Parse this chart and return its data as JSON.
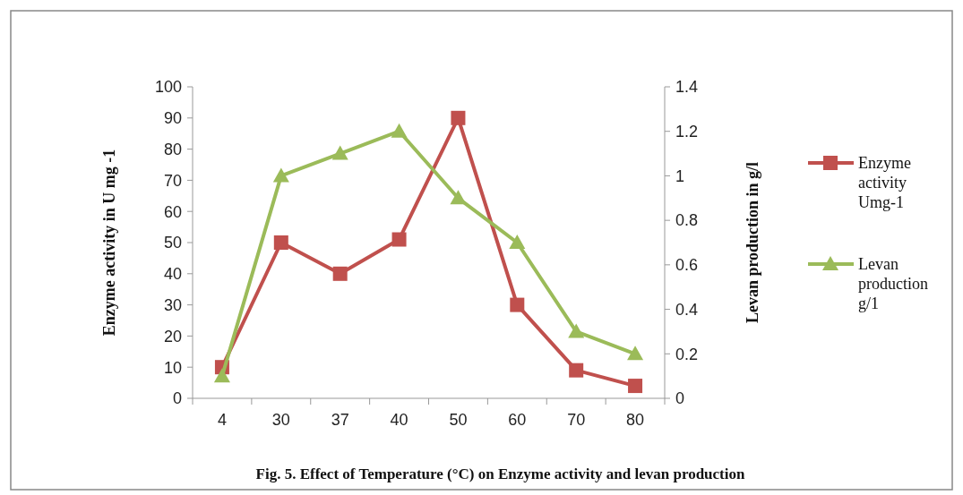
{
  "chart_data": {
    "type": "line",
    "title": "Fig. 5. Effect of Temperature  (°C) on Enzyme activity and levan production",
    "ylabel": "Enzyme activity in U mg -1",
    "y2label": "Levan production in g/l",
    "categories": [
      "4",
      "30",
      "37",
      "40",
      "50",
      "60",
      "70",
      "80"
    ],
    "ylim": [
      0,
      100
    ],
    "yticks": [
      0,
      10,
      20,
      30,
      40,
      50,
      60,
      70,
      80,
      90,
      100
    ],
    "y2lim": [
      0,
      1.4
    ],
    "y2ticks": [
      0,
      0.2,
      0.4,
      0.6,
      0.8,
      1,
      1.2,
      1.4
    ],
    "legend": "right",
    "grid": false,
    "series": [
      {
        "name": "Enzyme activity Umg-1",
        "color": "#c0504d",
        "marker": "square",
        "values": [
          10,
          50,
          40,
          51,
          90,
          30,
          9,
          4
        ]
      },
      {
        "name": "Levan production g/1",
        "color": "#9bbb59",
        "marker": "triangle",
        "axis": "y2",
        "values": [
          0.1,
          1.0,
          1.1,
          1.2,
          0.9,
          0.7,
          0.3,
          0.2
        ]
      }
    ]
  }
}
